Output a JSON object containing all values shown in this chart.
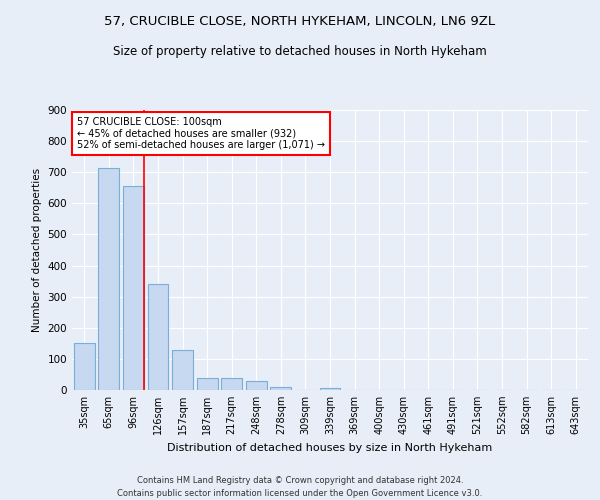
{
  "title": "57, CRUCIBLE CLOSE, NORTH HYKEHAM, LINCOLN, LN6 9ZL",
  "subtitle": "Size of property relative to detached houses in North Hykeham",
  "xlabel": "Distribution of detached houses by size in North Hykeham",
  "ylabel": "Number of detached properties",
  "categories": [
    "35sqm",
    "65sqm",
    "96sqm",
    "126sqm",
    "157sqm",
    "187sqm",
    "217sqm",
    "248sqm",
    "278sqm",
    "309sqm",
    "339sqm",
    "369sqm",
    "400sqm",
    "430sqm",
    "461sqm",
    "491sqm",
    "521sqm",
    "552sqm",
    "582sqm",
    "613sqm",
    "643sqm"
  ],
  "values": [
    150,
    715,
    655,
    340,
    127,
    40,
    38,
    28,
    10,
    0,
    8,
    0,
    0,
    0,
    0,
    0,
    0,
    0,
    0,
    0,
    0
  ],
  "bar_color": "#c6d9f0",
  "bar_edge_color": "#7baed6",
  "ylim": [
    0,
    900
  ],
  "yticks": [
    0,
    100,
    200,
    300,
    400,
    500,
    600,
    700,
    800,
    900
  ],
  "red_line_x": 2.43,
  "annotation_text": "57 CRUCIBLE CLOSE: 100sqm\n← 45% of detached houses are smaller (932)\n52% of semi-detached houses are larger (1,071) →",
  "annotation_box_color": "white",
  "annotation_box_edge_color": "red",
  "footer_line1": "Contains HM Land Registry data © Crown copyright and database right 2024.",
  "footer_line2": "Contains public sector information licensed under the Open Government Licence v3.0.",
  "background_color": "#e8eef7",
  "plot_background_color": "#e8eef7",
  "grid_color": "white",
  "title_fontsize": 9.5,
  "subtitle_fontsize": 8.5,
  "tick_fontsize": 7,
  "ylabel_fontsize": 7.5,
  "xlabel_fontsize": 8,
  "footer_fontsize": 6,
  "annotation_fontsize": 7
}
